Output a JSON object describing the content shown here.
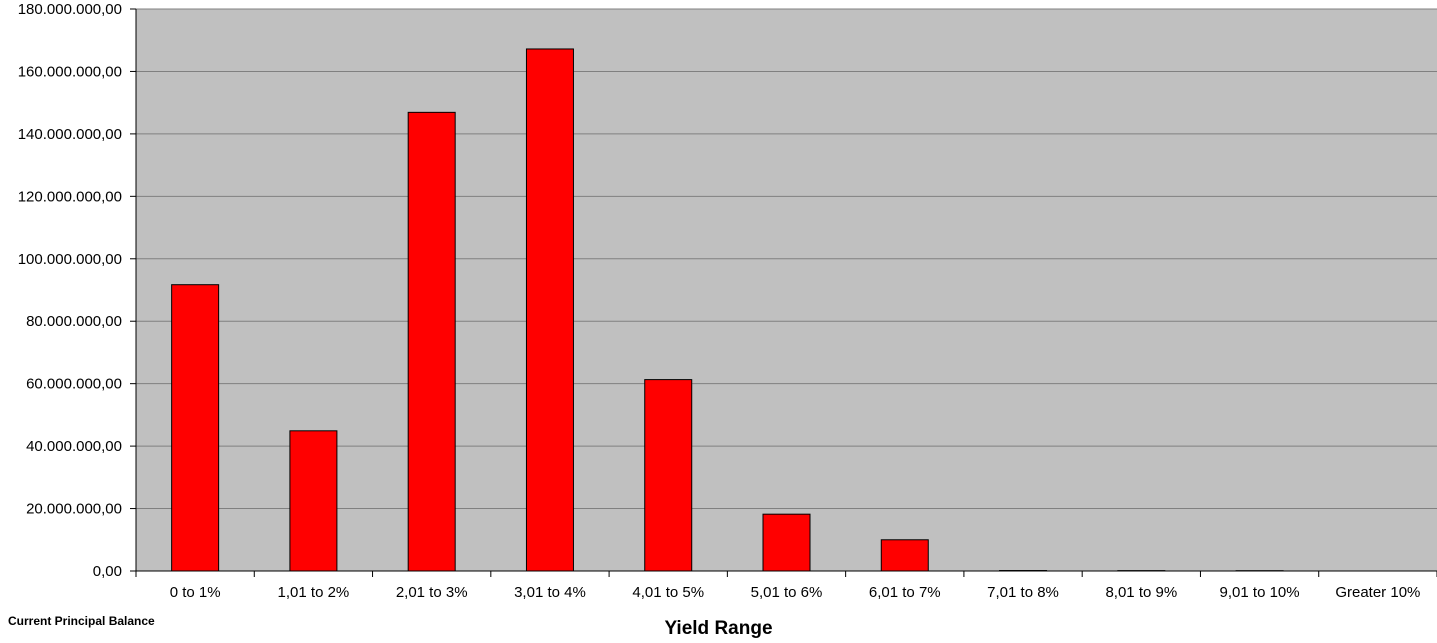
{
  "chart_data": {
    "type": "bar",
    "categories": [
      "0 to 1%",
      "1,01 to 2%",
      "2,01 to 3%",
      "3,01 to 4%",
      "4,01 to 5%",
      "5,01 to 6%",
      "6,01 to 7%",
      "7,01 to 8%",
      "8,01 to 9%",
      "9,01 to 10%",
      "Greater 10%"
    ],
    "series": [
      {
        "name": "Current Principal  Balance",
        "values": [
          91700000,
          44900000,
          146900000,
          167200000,
          61300000,
          18200000,
          10000000,
          150000,
          120000,
          100000,
          0
        ]
      }
    ],
    "xlabel": "Yield Range",
    "ylabel": "",
    "ylim": [
      0,
      180000000
    ],
    "yticks": [
      {
        "value": 0,
        "label": "0,00"
      },
      {
        "value": 20000000,
        "label": "20.000.000,00"
      },
      {
        "value": 40000000,
        "label": "40.000.000,00"
      },
      {
        "value": 60000000,
        "label": "60.000.000,00"
      },
      {
        "value": 80000000,
        "label": "80.000.000,00"
      },
      {
        "value": 100000000,
        "label": "100.000.000,00"
      },
      {
        "value": 120000000,
        "label": "120.000.000,00"
      },
      {
        "value": 140000000,
        "label": "140.000.000,00"
      },
      {
        "value": 160000000,
        "label": "160.000.000,00"
      },
      {
        "value": 180000000,
        "label": "180.000.000,00"
      }
    ],
    "grid": true,
    "colors": {
      "bar_fill": "#ff0000",
      "bar_stroke": "#000000",
      "plot_background": "#c0c0c0",
      "gridline": "#808080"
    }
  }
}
